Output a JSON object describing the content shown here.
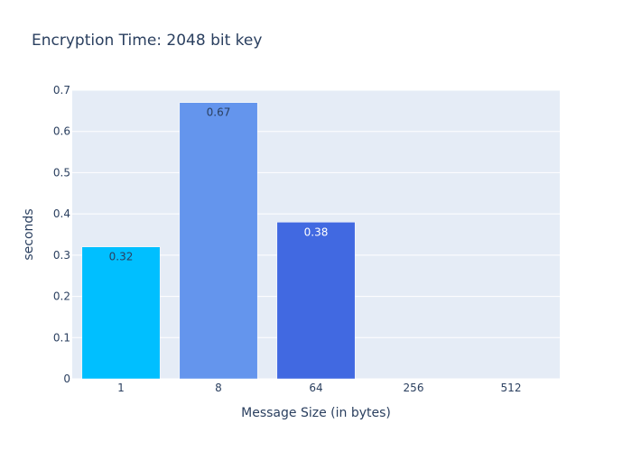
{
  "chart_data": {
    "type": "bar",
    "title": "Encryption Time: 2048 bit key",
    "xlabel": "Message Size (in bytes)",
    "ylabel": "seconds",
    "categories": [
      "1",
      "8",
      "64",
      "256",
      "512"
    ],
    "values": [
      0.32,
      0.67,
      0.38,
      0,
      0
    ],
    "data_labels": [
      "0.32",
      "0.67",
      "0.38",
      "",
      ""
    ],
    "bar_colors": [
      "#00bfff",
      "#6495ed",
      "#4169e1",
      "#4169e1",
      "#4169e1"
    ],
    "label_colors": [
      "#2a3f5f",
      "#2a3f5f",
      "#ffffff",
      "#ffffff",
      "#ffffff"
    ],
    "ylim": [
      0,
      0.7
    ],
    "yticks": [
      0,
      0.1,
      0.2,
      0.3,
      0.4,
      0.5,
      0.6,
      0.7
    ],
    "ytick_labels": [
      "0",
      "0.1",
      "0.2",
      "0.3",
      "0.4",
      "0.5",
      "0.6",
      "0.7"
    ],
    "grid": true,
    "legend": "none",
    "plot_background": "#e5ecf6",
    "text_color": "#2a3f5f"
  }
}
